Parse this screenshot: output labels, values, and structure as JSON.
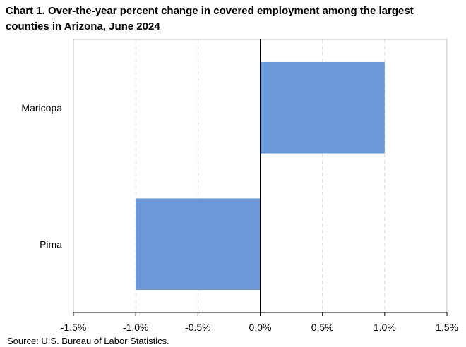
{
  "title": "Chart 1. Over-the-year percent change in covered employment among the largest counties in Arizona, June 2024",
  "source": "Source: U.S. Bureau of Labor Statistics.",
  "chart_data": {
    "type": "bar",
    "orientation": "horizontal",
    "categories": [
      "Maricopa",
      "Pima"
    ],
    "values": [
      1.0,
      -1.0
    ],
    "value_unit": "percent",
    "xlim": [
      -1.5,
      1.5
    ],
    "xticks": [
      -1.5,
      -1.0,
      -0.5,
      0.0,
      0.5,
      1.0,
      1.5
    ],
    "xtick_labels": [
      "-1.5%",
      "-1.0%",
      "-0.5%",
      "0.0%",
      "0.5%",
      "1.0%",
      "1.5%"
    ],
    "grid": "vertical dashed",
    "legend": "none",
    "colors": {
      "bar": "#6a98d8",
      "grid": "#d9d9d9",
      "axis": "#000000",
      "frame": "#bfbfbf"
    }
  }
}
